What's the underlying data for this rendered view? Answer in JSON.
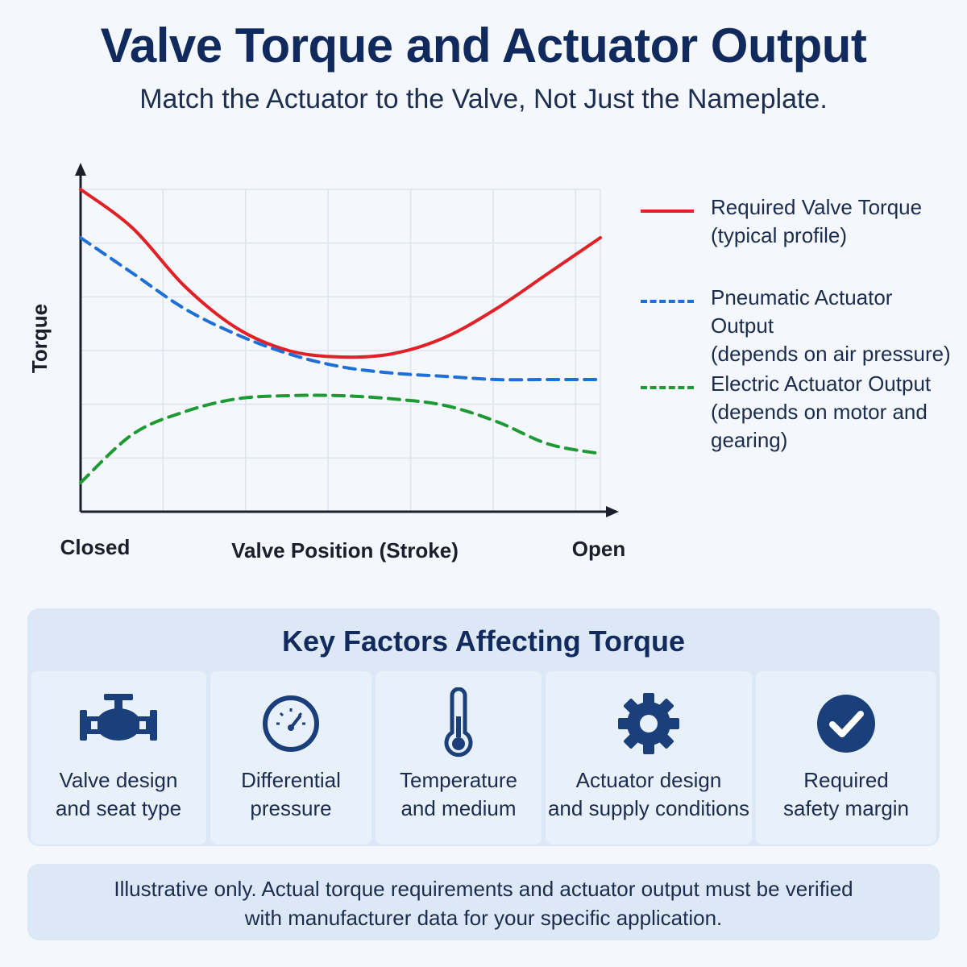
{
  "title": "Valve Torque and Actuator Output",
  "subtitle": "Match the Actuator to the Valve, Not Just the Nameplate.",
  "chart_data": {
    "type": "line",
    "xlabel": "Valve Position (Stroke)",
    "ylabel": "Torque",
    "x_tick_labels": [
      "Closed",
      "Open"
    ],
    "x": [
      0,
      10,
      20,
      30,
      40,
      50,
      60,
      70,
      80,
      90,
      100
    ],
    "xlim": [
      0,
      100
    ],
    "ylim": [
      0,
      100
    ],
    "grid": true,
    "legend_position": "right",
    "series": [
      {
        "name": "Required Valve Torque",
        "name_sub": "(typical profile)",
        "color": "#e02228",
        "style": "solid",
        "values": [
          100,
          88,
          70,
          57,
          50,
          48,
          49,
          54,
          63,
          74,
          85
        ]
      },
      {
        "name": "Pneumatic Actuator Output",
        "name_sub": "(depends on air pressure)",
        "color": "#1e6fd6",
        "style": "dashed",
        "values": [
          85,
          74,
          63,
          55,
          49,
          45,
          43,
          42,
          41,
          41,
          41
        ]
      },
      {
        "name": "Electric Actuator Output",
        "name_sub": "(depends on motor and gearing)",
        "name_sub_lines": [
          "(depends on motor and",
          "gearing)"
        ],
        "color": "#1e9a34",
        "style": "dashed",
        "values": [
          9,
          24,
          31,
          35,
          36,
          36,
          35,
          33,
          28,
          21,
          18
        ]
      }
    ]
  },
  "factors": {
    "title": "Key Factors Affecting Torque",
    "items": [
      {
        "icon": "valve-icon",
        "lines": [
          "Valve design",
          "and seat type"
        ]
      },
      {
        "icon": "pressure-gauge-icon",
        "lines": [
          "Differential",
          "pressure"
        ]
      },
      {
        "icon": "thermometer-icon",
        "lines": [
          "Temperature",
          "and medium"
        ]
      },
      {
        "icon": "gear-icon",
        "lines": [
          "Actuator design",
          "and supply conditions"
        ]
      },
      {
        "icon": "checkmark-circle-icon",
        "lines": [
          "Required",
          "safety margin"
        ]
      }
    ]
  },
  "disclaimer": {
    "lines": [
      "Illustrative only. Actual torque requirements and actuator output must be verified",
      "with manufacturer data for your specific application."
    ]
  },
  "colors": {
    "navy": "#112a5e",
    "icon": "#1a3f7a",
    "panel": "#dce8f5"
  }
}
